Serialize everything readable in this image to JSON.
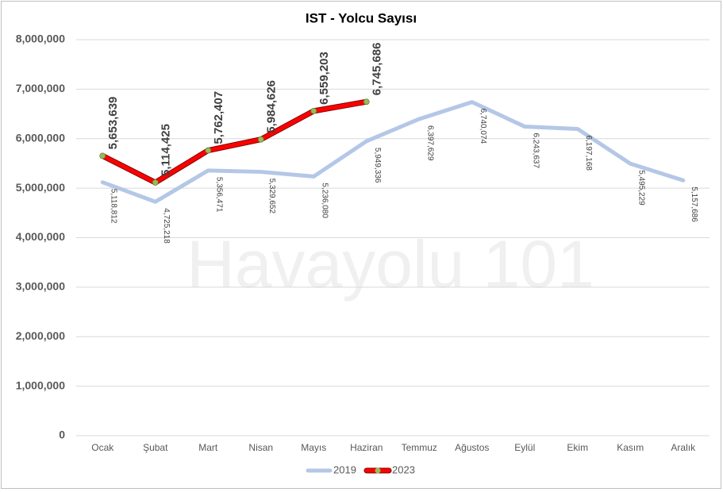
{
  "chart_data": {
    "type": "line",
    "title": "IST - Yolcu Sayısı",
    "watermark": "Havayolu 101",
    "categories": [
      "Ocak",
      "Şubat",
      "Mart",
      "Nisan",
      "Mayıs",
      "Haziran",
      "Temmuz",
      "Ağustos",
      "Eylül",
      "Ekim",
      "Kasım",
      "Aralık"
    ],
    "series": [
      {
        "name": "2019",
        "color": "#b4c7e7",
        "values": [
          5118812,
          4725218,
          5356471,
          5329652,
          5236080,
          5949336,
          6397629,
          6740074,
          6243637,
          6197168,
          5495229,
          5157686
        ],
        "value_labels": [
          "5,118,812",
          "4,725,218",
          "5,356,471",
          "5,329,652",
          "5,236,080",
          "5,949,336",
          "6,397,629",
          "6,740,074",
          "6,243,637",
          "6,197,168",
          "5,495,229",
          "5,157,686"
        ]
      },
      {
        "name": "2023",
        "color": "#ff0000",
        "marker_color": "#9bbb59",
        "values": [
          5653639,
          5114425,
          5762407,
          5984626,
          6559203,
          6745686,
          null,
          null,
          null,
          null,
          null,
          null
        ],
        "value_labels": [
          "5,653,639",
          "5,114,425",
          "5,762,407",
          "5,984,626",
          "6,559,203",
          "6,745,686",
          null,
          null,
          null,
          null,
          null,
          null
        ]
      }
    ],
    "ylim": [
      0,
      8000000
    ],
    "yticks": [
      0,
      {
        "value": 1000000,
        "label": "1,000,000"
      },
      {
        "value": 2000000,
        "label": "2,000,000"
      },
      {
        "value": 3000000,
        "label": "3,000,000"
      },
      {
        "value": 4000000,
        "label": "4,000,000"
      },
      {
        "value": 5000000,
        "label": "5,000,000"
      },
      {
        "value": 6000000,
        "label": "6,000,000"
      },
      {
        "value": 7000000,
        "label": "7,000,000"
      },
      {
        "value": 8000000,
        "label": "8,000,000"
      }
    ],
    "grid": true,
    "legend": "bottom"
  }
}
